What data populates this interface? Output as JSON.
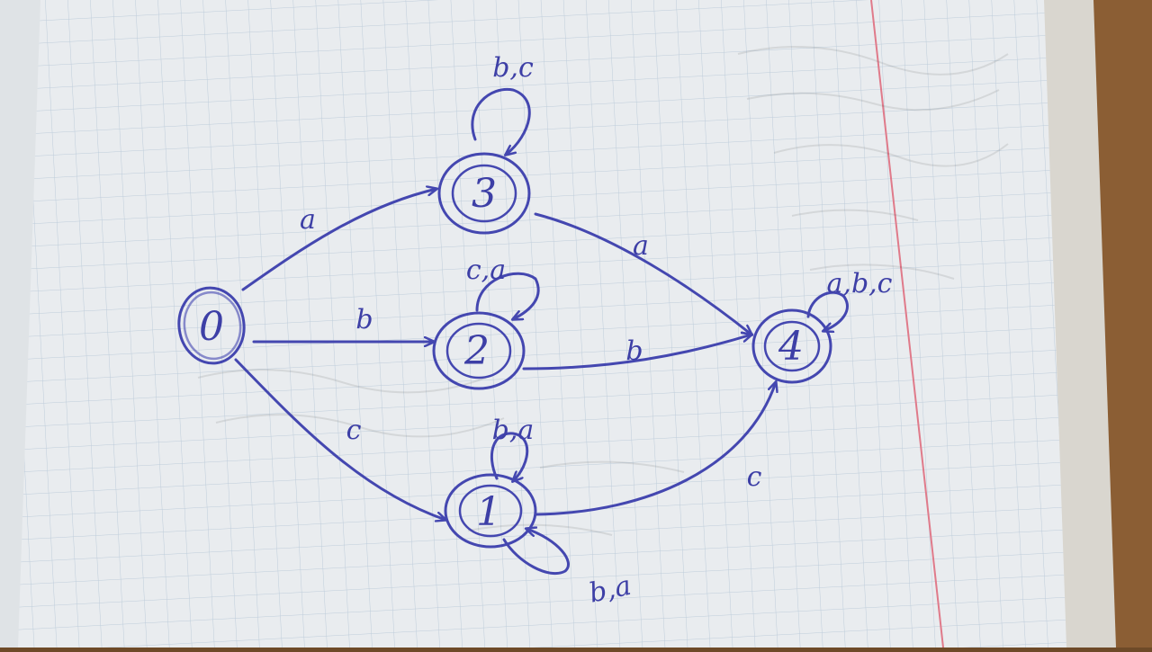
{
  "diagram": {
    "states": [
      {
        "id": "s0",
        "label": "0",
        "accepting": false
      },
      {
        "id": "s3",
        "label": "3",
        "accepting": true
      },
      {
        "id": "s2",
        "label": "2",
        "accepting": true
      },
      {
        "id": "s1",
        "label": "1",
        "accepting": true
      },
      {
        "id": "s4",
        "label": "4",
        "accepting": true
      }
    ],
    "transitions": [
      {
        "from": "0",
        "to": "3",
        "label": "a"
      },
      {
        "from": "0",
        "to": "2",
        "label": "b"
      },
      {
        "from": "0",
        "to": "1",
        "label": "c"
      },
      {
        "from": "3",
        "to": "3",
        "label": "b,c"
      },
      {
        "from": "2",
        "to": "2",
        "label": "c,a"
      },
      {
        "from": "1",
        "to": "1",
        "label": "b,a"
      },
      {
        "from": "1",
        "to": "1",
        "label": "b,a"
      },
      {
        "from": "3",
        "to": "4",
        "label": "a"
      },
      {
        "from": "2",
        "to": "4",
        "label": "b"
      },
      {
        "from": "1",
        "to": "4",
        "label": "c"
      },
      {
        "from": "4",
        "to": "4",
        "label": "a,b,c"
      }
    ]
  },
  "colors": {
    "ink": "#4447b0",
    "paper": "#e9ecef",
    "grid": "#b9c9d8",
    "margin_line": "#e07a8a",
    "desk": "#6e4a28"
  }
}
